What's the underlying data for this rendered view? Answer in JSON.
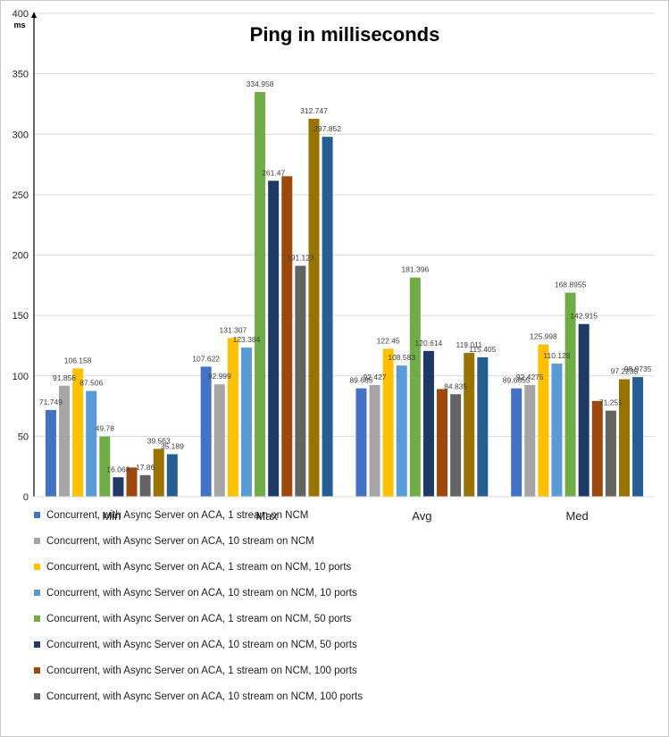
{
  "chart_data": {
    "type": "bar",
    "title": "Ping in milliseconds",
    "ylabel": "ms",
    "ylim": [
      0,
      400
    ],
    "yticks": [
      0,
      50,
      100,
      150,
      200,
      250,
      300,
      350,
      400
    ],
    "grid": true,
    "legend_position": "bottom",
    "categories": [
      "Min",
      "Max",
      "Avg",
      "Med"
    ],
    "series": [
      {
        "name": "Concurrent, with Async Server on ACA, 1 stream on NCM",
        "color": "#4472c4",
        "values": [
          71.749,
          107.622,
          89.685,
          89.6855
        ],
        "labels": [
          "71.749",
          "107.622",
          "89.685",
          "89.6855"
        ]
      },
      {
        "name": "Concurrent, with Async Server on ACA, 10 stream on NCM",
        "color": "#a5a5a5",
        "values": [
          91.856,
          92.999,
          92.427,
          92.4275
        ],
        "labels": [
          "91.856",
          "92.999",
          "92.427",
          "92.4275"
        ]
      },
      {
        "name": "Concurrent, with Async Server on ACA, 1 stream on NCM, 10 ports",
        "color": "#ffc000",
        "values": [
          106.158,
          131.307,
          122.45,
          125.998
        ],
        "labels": [
          "106.158",
          "131.307",
          "122.45",
          "125.998"
        ]
      },
      {
        "name": "Concurrent, with Async Server on ACA, 10 stream on NCM, 10 ports",
        "color": "#5b9bd5",
        "values": [
          87.506,
          123.384,
          108.583,
          110.128
        ],
        "labels": [
          "87.506",
          "123.384",
          "108.583",
          "110.128"
        ]
      },
      {
        "name": "Concurrent, with Async Server on ACA, 1 stream on NCM, 50 ports",
        "color": "#70ad47",
        "values": [
          49.78,
          334.958,
          181.396,
          168.8955
        ],
        "labels": [
          "49.78",
          "334.958",
          "181.396",
          "168.8955"
        ]
      },
      {
        "name": "Concurrent, with Async Server on ACA, 10 stream on NCM, 50 ports",
        "color": "#203864",
        "values": [
          16.068,
          261.47,
          120.614,
          142.915
        ],
        "labels": [
          "16.068",
          "261.47",
          "120.614",
          "142.915"
        ]
      },
      {
        "name": "Concurrent, with Async Server on ACA, 1 stream on NCM, 100 ports",
        "color": "#9e480e",
        "values": [
          24.1,
          265.2,
          89.1,
          79.2
        ],
        "labels": [
          "",
          "",
          "",
          ""
        ]
      },
      {
        "name": "Concurrent, with Async Server on ACA, 10 stream on NCM, 100 ports",
        "color": "#636363",
        "values": [
          17.86,
          191.123,
          84.835,
          71.251
        ],
        "labels": [
          "17.86",
          "191.123",
          "84.835",
          "71.251"
        ]
      },
      {
        "name": "",
        "color": "#997300",
        "values": [
          39.563,
          312.747,
          119.011,
          97.2235
        ],
        "labels": [
          "39.563",
          "312.747",
          "119.011",
          "97.2235"
        ]
      },
      {
        "name": "",
        "color": "#255e91",
        "values": [
          35.189,
          297.852,
          115.405,
          98.9735
        ],
        "labels": [
          "35.189",
          "297.852",
          "115.405",
          "98.9735"
        ]
      }
    ]
  }
}
